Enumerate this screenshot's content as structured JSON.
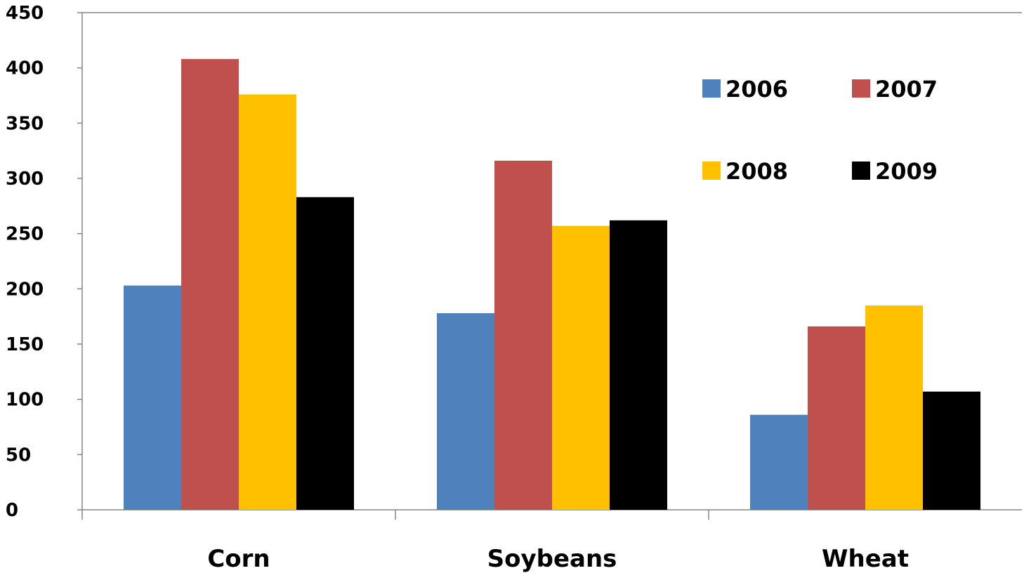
{
  "chart_data": {
    "type": "bar",
    "title": "",
    "xlabel": "",
    "ylabel": "",
    "categories": [
      "Corn",
      "Soybeans",
      "Wheat"
    ],
    "series": [
      {
        "name": "2006",
        "values": [
          203,
          178,
          86
        ],
        "color": "#4F81BD"
      },
      {
        "name": "2007",
        "values": [
          408,
          316,
          166
        ],
        "color": "#C0504D"
      },
      {
        "name": "2008",
        "values": [
          376,
          257,
          185
        ],
        "color": "#FFC000"
      },
      {
        "name": "2009",
        "values": [
          283,
          262,
          107
        ],
        "color": "#000000"
      }
    ],
    "ylim": [
      0,
      450
    ],
    "yticks": [
      "0",
      "50",
      "100",
      "150",
      "200",
      "250",
      "300",
      "350",
      "400",
      "450"
    ],
    "grid": false,
    "legend_position": "top-right"
  }
}
